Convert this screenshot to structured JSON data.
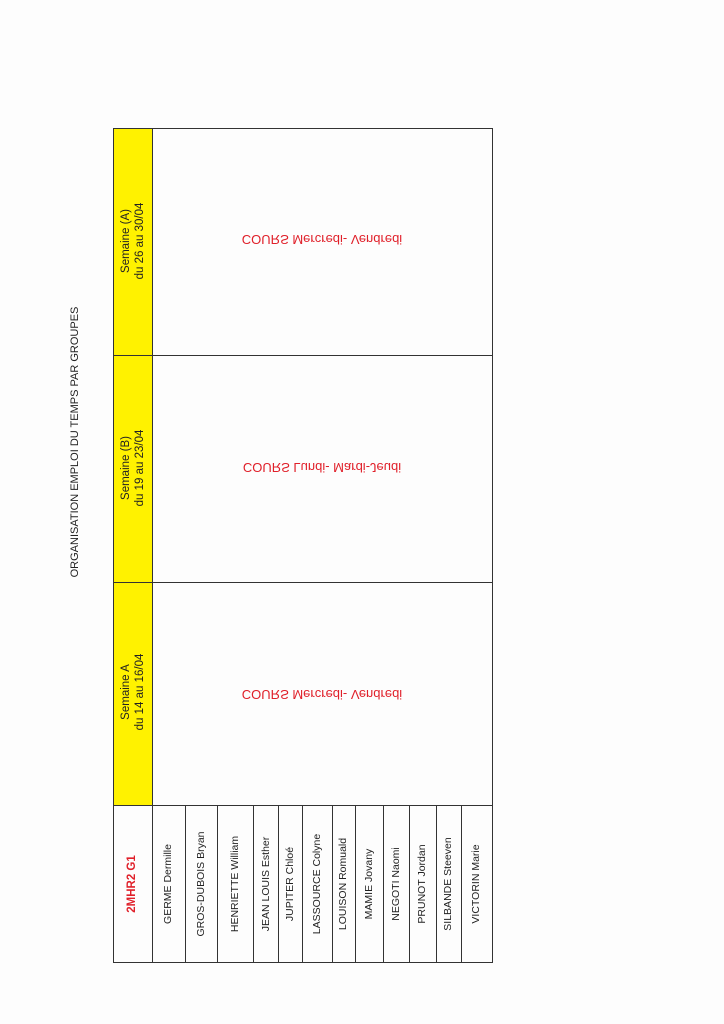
{
  "title": "ORGANISATION EMPLOI DU TEMPS PAR GROUPES",
  "group": "2MHR2 G1",
  "weeks": [
    {
      "label": "Semaine  A",
      "dates": "du 14 au 16/04",
      "courses": "COURS Mercredi- Vendredi"
    },
    {
      "label": "Semaine (B)",
      "dates": "du 19 au 23/04",
      "courses": "COURS Lundi- Mardi-Jeudi"
    },
    {
      "label": "Semaine (A)",
      "dates": "du 26 au 30/04",
      "courses": "COURS Mercredi- Vendredi"
    }
  ],
  "students": [
    "GERME Dermille",
    "GROS-DUBOIS Bryan",
    "HENRIETTE William",
    "JEAN LOUIS Esther",
    "JUPITER Chloé",
    "LASSOURCE Colyne",
    "LOUISON Romuald",
    "MAMIE Jovany",
    "NEGOTI Naomi",
    "PRUNOT Jordan",
    "SILBANDE Steeven",
    "VICTORIN Marie"
  ],
  "colors": {
    "header_highlight": "#fff200",
    "course_text": "#e0202a"
  }
}
